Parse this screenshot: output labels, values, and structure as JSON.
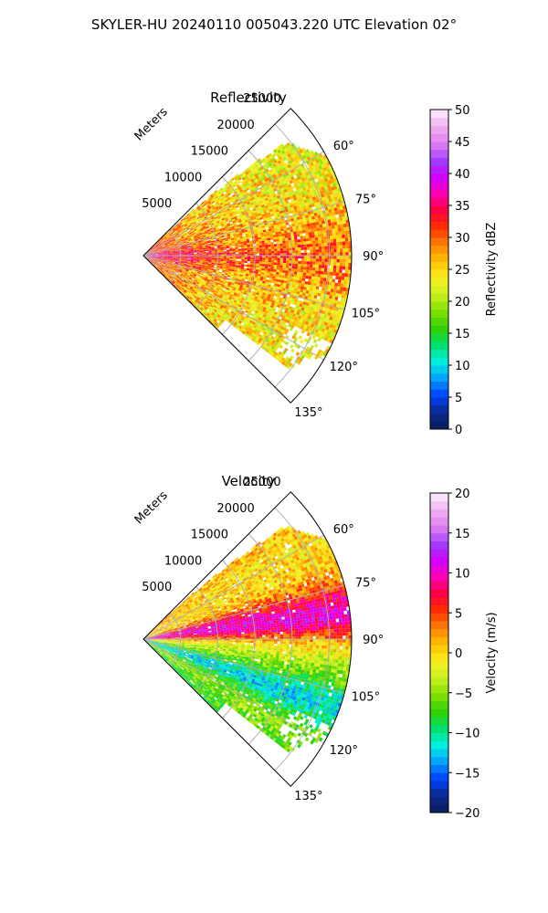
{
  "figure": {
    "suptitle": "SKYLER-HU  20240110  005043.220 UTC Elevation 02°"
  },
  "colors": {
    "grid": "#b0b0b0",
    "axis": "#000000",
    "reflectivity_cmap": [
      "#0a1a5a",
      "#0a2a8a",
      "#0040ff",
      "#00a0ff",
      "#00f0e0",
      "#00e070",
      "#30d000",
      "#80e000",
      "#c8f020",
      "#f8f020",
      "#ffc000",
      "#ff8000",
      "#ff3000",
      "#ff0040",
      "#ff00b0",
      "#d000ff",
      "#a040ff",
      "#e080f0",
      "#f0b0f0",
      "#fff0ff"
    ],
    "velocity_cmap": [
      "#0a1a5a",
      "#0a2a8a",
      "#0040ff",
      "#00a0ff",
      "#00f0e0",
      "#00e070",
      "#30d000",
      "#80e000",
      "#c8f020",
      "#f8f020",
      "#ffc000",
      "#ff8000",
      "#ff3000",
      "#ff0040",
      "#ff00b0",
      "#d000ff",
      "#a040ff",
      "#e080f0",
      "#f0b0f0",
      "#fff0ff"
    ]
  },
  "chart_data": [
    {
      "type": "heatmap",
      "projection": "polar-sector",
      "title": "Reflectivity",
      "range_label": "Meters",
      "range_ticks": [
        "5000",
        "10000",
        "15000",
        "20000",
        "25000"
      ],
      "range_values": [
        5000,
        10000,
        15000,
        20000,
        25000
      ],
      "range_max": 28000,
      "angle_ticks": [
        "60°",
        "75°",
        "90°",
        "105°",
        "120°",
        "135°"
      ],
      "angle_values": [
        60,
        75,
        90,
        105,
        120,
        135
      ],
      "sector": [
        45,
        135
      ],
      "grid": true,
      "colorbar": {
        "label": "Reflectivity dBZ",
        "ticks": [
          "0",
          "5",
          "10",
          "15",
          "20",
          "25",
          "30",
          "35",
          "40",
          "45",
          "50"
        ],
        "min": 0,
        "max": 50
      }
    },
    {
      "type": "heatmap",
      "projection": "polar-sector",
      "title": "Velocity",
      "range_label": "Meters",
      "range_ticks": [
        "5000",
        "10000",
        "15000",
        "20000",
        "25000"
      ],
      "range_values": [
        5000,
        10000,
        15000,
        20000,
        25000
      ],
      "range_max": 28000,
      "angle_ticks": [
        "60°",
        "75°",
        "90°",
        "105°",
        "120°",
        "135°"
      ],
      "angle_values": [
        60,
        75,
        90,
        105,
        120,
        135
      ],
      "sector": [
        45,
        135
      ],
      "grid": true,
      "colorbar": {
        "label": "Velocity (m/s)",
        "ticks": [
          "−20",
          "−15",
          "−10",
          "−5",
          "0",
          "5",
          "10",
          "15",
          "20"
        ],
        "min": -20,
        "max": 20
      }
    }
  ]
}
